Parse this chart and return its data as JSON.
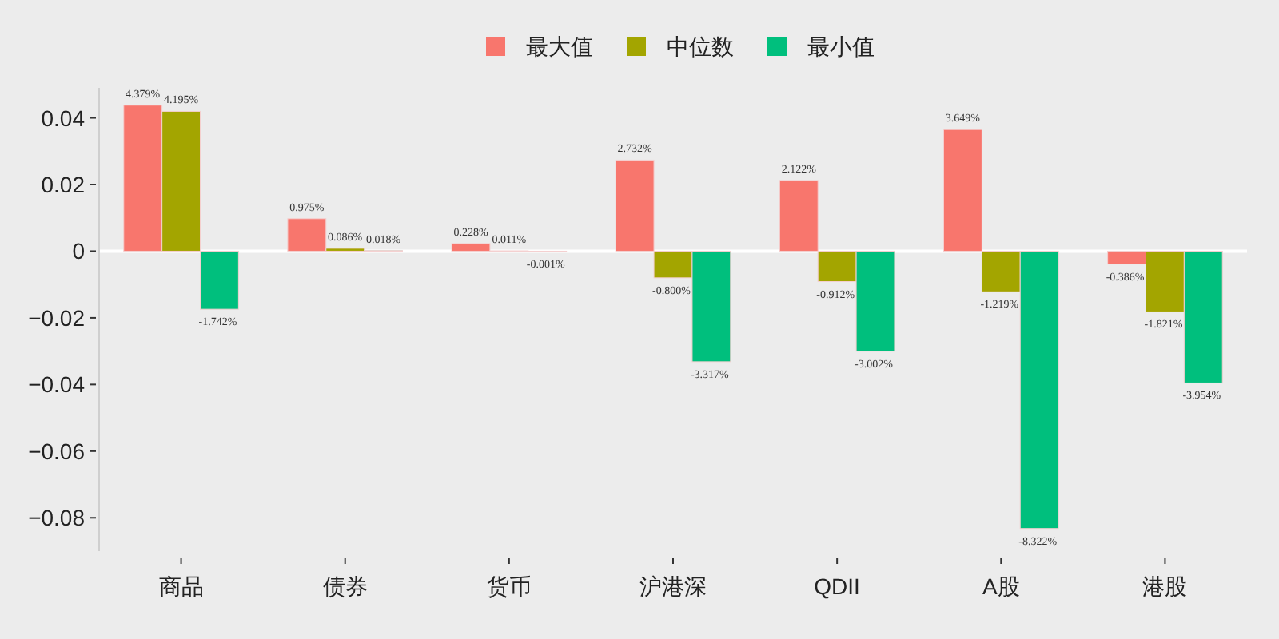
{
  "chart_data": {
    "type": "bar",
    "categories": [
      "商品",
      "债券",
      "货币",
      "沪港深",
      "QDII",
      "A股",
      "港股"
    ],
    "series": [
      {
        "name": "最大值",
        "color": "#f8766d",
        "values": [
          0.04379,
          0.00975,
          0.00228,
          0.02732,
          0.02122,
          0.03649,
          -0.00386
        ],
        "value_labels": [
          "4.379%",
          "0.975%",
          "0.228%",
          "2.732%",
          "2.122%",
          "3.649%",
          "-0.386%"
        ]
      },
      {
        "name": "中位数",
        "color": "#a3a500",
        "values": [
          0.04195,
          0.00086,
          0.00011,
          -0.008,
          -0.00912,
          -0.01219,
          -0.01821
        ],
        "value_labels": [
          "4.195%",
          "0.086%",
          "0.011%",
          "-0.800%",
          "-0.912%",
          "-1.219%",
          "-1.821%"
        ]
      },
      {
        "name": "最小值",
        "color": "#00bf7d",
        "values": [
          -0.01742,
          0.00018,
          -1e-05,
          -0.03317,
          -0.03002,
          -0.08322,
          -0.03954
        ],
        "value_labels": [
          "-1.742%",
          "0.018%",
          "-0.001%",
          "-3.317%",
          "-3.002%",
          "-8.322%",
          "-3.954%"
        ]
      }
    ],
    "ylim": [
      -0.09,
      0.049
    ],
    "yticks": [
      {
        "value": -0.08,
        "label": "−0.08"
      },
      {
        "value": -0.06,
        "label": "−0.06"
      },
      {
        "value": -0.04,
        "label": "−0.04"
      },
      {
        "value": -0.02,
        "label": "−0.02"
      },
      0,
      0.02,
      0.04
    ],
    "ref_lines": [
      {
        "axis": "y",
        "value": 0,
        "color": "#ffffff"
      }
    ],
    "legend": "top",
    "grid": false
  }
}
